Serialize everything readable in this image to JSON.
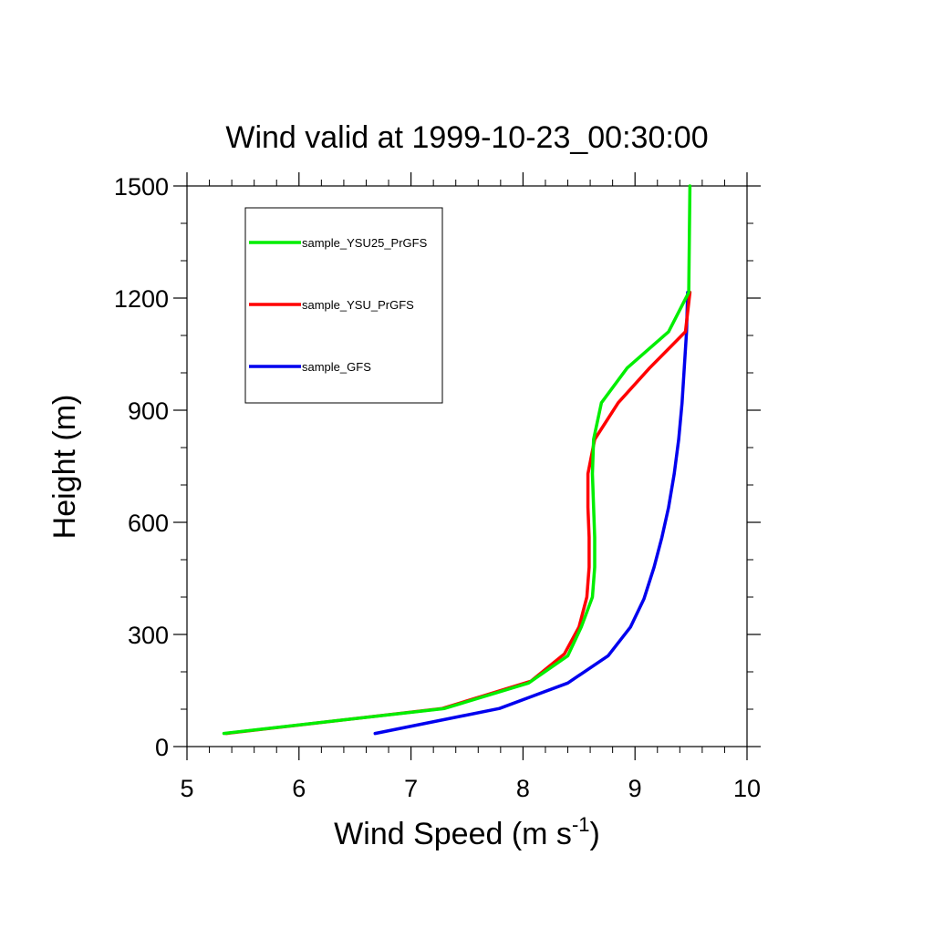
{
  "chart_data": {
    "type": "line",
    "title": "Wind valid at 1999-10-23_00:30:00",
    "xlabel": "Wind Speed (m s",
    "xlabel_superscript": "-1",
    "xlabel_suffix": ")",
    "ylabel": "Height (m)",
    "xlim": [
      5,
      10
    ],
    "ylim": [
      0,
      1500
    ],
    "xticks": [
      "5",
      "6",
      "7",
      "8",
      "9",
      "10"
    ],
    "yticks": [
      "0",
      "300",
      "600",
      "900",
      "1200",
      "1500"
    ],
    "grid": false,
    "legend_position": "top-left",
    "series": [
      {
        "name": "sample_YSU25_PrGFS",
        "color": "#00ee00",
        "points": [
          [
            5.33,
            35
          ],
          [
            7.3,
            102
          ],
          [
            8.05,
            170
          ],
          [
            8.4,
            243
          ],
          [
            8.52,
            320
          ],
          [
            8.62,
            400
          ],
          [
            8.64,
            480
          ],
          [
            8.64,
            560
          ],
          [
            8.63,
            640
          ],
          [
            8.62,
            730
          ],
          [
            8.63,
            822
          ],
          [
            8.7,
            920
          ],
          [
            8.93,
            1013
          ],
          [
            9.3,
            1110
          ],
          [
            9.48,
            1215
          ],
          [
            9.49,
            1500
          ]
        ]
      },
      {
        "name": "sample_YSU_PrGFS",
        "color": "#ff0000",
        "points": [
          [
            5.35,
            35
          ],
          [
            7.28,
            102
          ],
          [
            8.07,
            175
          ],
          [
            8.37,
            248
          ],
          [
            8.5,
            320
          ],
          [
            8.57,
            400
          ],
          [
            8.59,
            480
          ],
          [
            8.59,
            560
          ],
          [
            8.58,
            640
          ],
          [
            8.58,
            730
          ],
          [
            8.64,
            822
          ],
          [
            8.85,
            920
          ],
          [
            9.13,
            1013
          ],
          [
            9.45,
            1110
          ],
          [
            9.49,
            1215
          ]
        ]
      },
      {
        "name": "sample_GFS",
        "color": "#0000ee",
        "points": [
          [
            6.68,
            35
          ],
          [
            7.79,
            102
          ],
          [
            8.4,
            170
          ],
          [
            8.76,
            243
          ],
          [
            8.96,
            320
          ],
          [
            9.08,
            395
          ],
          [
            9.17,
            480
          ],
          [
            9.24,
            560
          ],
          [
            9.3,
            640
          ],
          [
            9.35,
            730
          ],
          [
            9.39,
            822
          ],
          [
            9.42,
            920
          ],
          [
            9.44,
            1013
          ],
          [
            9.46,
            1110
          ],
          [
            9.47,
            1215
          ]
        ]
      }
    ]
  }
}
